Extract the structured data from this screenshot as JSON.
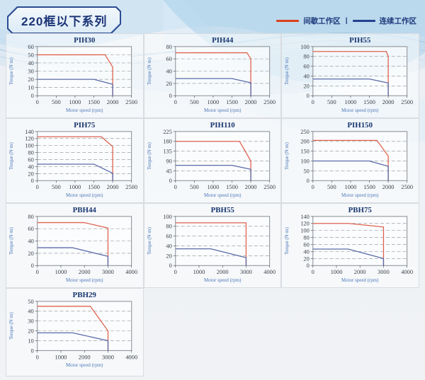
{
  "page": {
    "title": "220框以下系列",
    "legend": [
      {
        "label": "间歇工作区",
        "color": "#d9401f"
      },
      {
        "label": "连续工作区",
        "color": "#23418e"
      }
    ],
    "legend_separator": "|"
  },
  "chart_defaults": {
    "xlabel": "Motor speed (rpm)",
    "ylabel": "Torque (N·m)",
    "colors": {
      "intermittent": "#df6350",
      "continuous": "#5a6ba9"
    }
  },
  "chart_data": [
    {
      "type": "line",
      "title": "PIH30",
      "xlim": [
        0,
        2500
      ],
      "xstep": 500,
      "ylim": [
        0,
        60
      ],
      "ystep": 10,
      "series": [
        {
          "name": "间歇工作区",
          "key": "intermittent",
          "points": [
            [
              0,
              50
            ],
            [
              1800,
              50
            ],
            [
              2000,
              35
            ],
            [
              2000,
              0
            ]
          ]
        },
        {
          "name": "连续工作区",
          "key": "continuous",
          "points": [
            [
              0,
              20
            ],
            [
              1500,
              20
            ],
            [
              2000,
              14
            ],
            [
              2000,
              0
            ]
          ]
        }
      ]
    },
    {
      "type": "line",
      "title": "PIH44",
      "xlim": [
        0,
        2500
      ],
      "xstep": 500,
      "ylim": [
        0,
        80
      ],
      "ystep": 20,
      "series": [
        {
          "name": "间歇工作区",
          "key": "intermittent",
          "points": [
            [
              0,
              70
            ],
            [
              1900,
              70
            ],
            [
              2000,
              60
            ],
            [
              2000,
              0
            ]
          ]
        },
        {
          "name": "连续工作区",
          "key": "continuous",
          "points": [
            [
              0,
              28
            ],
            [
              1500,
              28
            ],
            [
              2000,
              21
            ],
            [
              2000,
              0
            ]
          ]
        }
      ]
    },
    {
      "type": "line",
      "title": "PIH55",
      "xlim": [
        0,
        2500
      ],
      "xstep": 500,
      "ylim": [
        0,
        100
      ],
      "ystep": 20,
      "series": [
        {
          "name": "间歇工作区",
          "key": "intermittent",
          "points": [
            [
              0,
              90
            ],
            [
              1950,
              90
            ],
            [
              2000,
              80
            ],
            [
              2000,
              0
            ]
          ]
        },
        {
          "name": "连续工作区",
          "key": "continuous",
          "points": [
            [
              0,
              34
            ],
            [
              1500,
              34
            ],
            [
              2000,
              26
            ],
            [
              2000,
              0
            ]
          ]
        }
      ]
    },
    {
      "type": "line",
      "title": "PIH75",
      "xlim": [
        0,
        2500
      ],
      "xstep": 500,
      "ylim": [
        0,
        140
      ],
      "ystep": 20,
      "series": [
        {
          "name": "间歇工作区",
          "key": "intermittent",
          "points": [
            [
              0,
              125
            ],
            [
              1700,
              125
            ],
            [
              2000,
              97
            ],
            [
              2000,
              0
            ]
          ]
        },
        {
          "name": "连续工作区",
          "key": "continuous",
          "points": [
            [
              0,
              47
            ],
            [
              1500,
              47
            ],
            [
              2000,
              21
            ],
            [
              2000,
              0
            ]
          ]
        }
      ]
    },
    {
      "type": "line",
      "title": "PIH110",
      "xlim": [
        0,
        2500
      ],
      "xstep": 500,
      "ylim": [
        0,
        225
      ],
      "ystep": 45,
      "series": [
        {
          "name": "间歇工作区",
          "key": "intermittent",
          "points": [
            [
              0,
              180
            ],
            [
              1700,
              180
            ],
            [
              2000,
              90
            ],
            [
              2000,
              0
            ]
          ]
        },
        {
          "name": "连续工作区",
          "key": "continuous",
          "points": [
            [
              0,
              70
            ],
            [
              1500,
              70
            ],
            [
              2000,
              52
            ],
            [
              2000,
              0
            ]
          ]
        }
      ]
    },
    {
      "type": "line",
      "title": "PIH150",
      "xlim": [
        0,
        2500
      ],
      "xstep": 500,
      "ylim": [
        0,
        250
      ],
      "ystep": 50,
      "series": [
        {
          "name": "间歇工作区",
          "key": "intermittent",
          "points": [
            [
              0,
              205
            ],
            [
              1700,
              205
            ],
            [
              2000,
              125
            ],
            [
              2000,
              0
            ]
          ]
        },
        {
          "name": "连续工作区",
          "key": "continuous",
          "points": [
            [
              0,
              100
            ],
            [
              1500,
              100
            ],
            [
              2000,
              73
            ],
            [
              2000,
              0
            ]
          ]
        }
      ]
    },
    {
      "type": "line",
      "title": "PBH44",
      "xlim": [
        0,
        4000
      ],
      "xstep": 1000,
      "ylim": [
        0,
        80
      ],
      "ystep": 20,
      "series": [
        {
          "name": "间歇工作区",
          "key": "intermittent",
          "points": [
            [
              0,
              70
            ],
            [
              2000,
              70
            ],
            [
              3000,
              61
            ],
            [
              3000,
              0
            ]
          ]
        },
        {
          "name": "连续工作区",
          "key": "continuous",
          "points": [
            [
              0,
              29
            ],
            [
              1500,
              29
            ],
            [
              3000,
              15
            ],
            [
              3000,
              0
            ]
          ]
        }
      ]
    },
    {
      "type": "line",
      "title": "PBH55",
      "xlim": [
        0,
        4000
      ],
      "xstep": 1000,
      "ylim": [
        0,
        100
      ],
      "ystep": 20,
      "series": [
        {
          "name": "间歇工作区",
          "key": "intermittent",
          "points": [
            [
              0,
              87
            ],
            [
              3000,
              87
            ],
            [
              3000,
              0
            ]
          ]
        },
        {
          "name": "连续工作区",
          "key": "continuous",
          "points": [
            [
              0,
              34
            ],
            [
              1500,
              34
            ],
            [
              3000,
              16
            ],
            [
              3000,
              0
            ]
          ]
        }
      ]
    },
    {
      "type": "line",
      "title": "PBH75",
      "xlim": [
        0,
        4000
      ],
      "xstep": 1000,
      "ylim": [
        0,
        140
      ],
      "ystep": 20,
      "series": [
        {
          "name": "间歇工作区",
          "key": "intermittent",
          "points": [
            [
              0,
              120
            ],
            [
              1500,
              120
            ],
            [
              3000,
              110
            ],
            [
              3000,
              0
            ]
          ]
        },
        {
          "name": "连续工作区",
          "key": "continuous",
          "points": [
            [
              0,
              47
            ],
            [
              1500,
              47
            ],
            [
              3000,
              20
            ],
            [
              3000,
              0
            ]
          ]
        }
      ]
    },
    {
      "type": "line",
      "title": "PBH29",
      "xlim": [
        0,
        4000
      ],
      "xstep": 1000,
      "ylim": [
        0,
        50
      ],
      "ystep": 10,
      "series": [
        {
          "name": "间歇工作区",
          "key": "intermittent",
          "points": [
            [
              0,
              45
            ],
            [
              2250,
              45
            ],
            [
              3000,
              20
            ],
            [
              3000,
              0
            ]
          ]
        },
        {
          "name": "连续工作区",
          "key": "continuous",
          "points": [
            [
              0,
              18
            ],
            [
              1500,
              18
            ],
            [
              3000,
              10
            ],
            [
              3000,
              0
            ]
          ]
        }
      ]
    }
  ]
}
